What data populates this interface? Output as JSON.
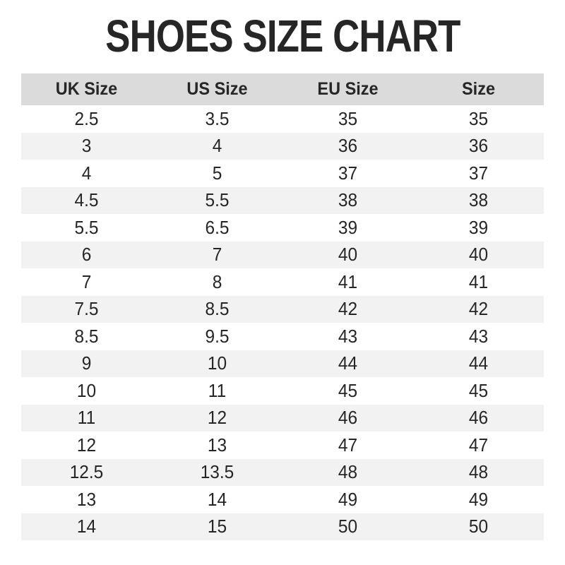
{
  "page": {
    "title": "SHOES SIZE CHART"
  },
  "table": {
    "headers": [
      "UK Size",
      "US Size",
      "EU Size",
      "Size"
    ],
    "rows": [
      [
        "2.5",
        "3.5",
        "35",
        "35"
      ],
      [
        "3",
        "4",
        "36",
        "36"
      ],
      [
        "4",
        "5",
        "37",
        "37"
      ],
      [
        "4.5",
        "5.5",
        "38",
        "38"
      ],
      [
        "5.5",
        "6.5",
        "39",
        "39"
      ],
      [
        "6",
        "7",
        "40",
        "40"
      ],
      [
        "7",
        "8",
        "41",
        "41"
      ],
      [
        "7.5",
        "8.5",
        "42",
        "42"
      ],
      [
        "8.5",
        "9.5",
        "43",
        "43"
      ],
      [
        "9",
        "10",
        "44",
        "44"
      ],
      [
        "10",
        "11",
        "45",
        "45"
      ],
      [
        "11",
        "12",
        "46",
        "46"
      ],
      [
        "12",
        "13",
        "47",
        "47"
      ],
      [
        "12.5",
        "13.5",
        "48",
        "48"
      ],
      [
        "13",
        "14",
        "49",
        "49"
      ],
      [
        "14",
        "15",
        "50",
        "50"
      ]
    ]
  },
  "colors": {
    "background": "#ffffff",
    "header_bg": "#dbdbdb",
    "row_alt_bg": "#f2f2f2",
    "text": "#262626"
  },
  "chart_data": {
    "type": "table",
    "title": "SHOES SIZE CHART",
    "columns": [
      "UK Size",
      "US Size",
      "EU Size",
      "Size"
    ],
    "rows": [
      [
        "2.5",
        "3.5",
        "35",
        "35"
      ],
      [
        "3",
        "4",
        "36",
        "36"
      ],
      [
        "4",
        "5",
        "37",
        "37"
      ],
      [
        "4.5",
        "5.5",
        "38",
        "38"
      ],
      [
        "5.5",
        "6.5",
        "39",
        "39"
      ],
      [
        "6",
        "7",
        "40",
        "40"
      ],
      [
        "7",
        "8",
        "41",
        "41"
      ],
      [
        "7.5",
        "8.5",
        "42",
        "42"
      ],
      [
        "8.5",
        "9.5",
        "43",
        "43"
      ],
      [
        "9",
        "10",
        "44",
        "44"
      ],
      [
        "10",
        "11",
        "45",
        "45"
      ],
      [
        "11",
        "12",
        "46",
        "46"
      ],
      [
        "12",
        "13",
        "47",
        "47"
      ],
      [
        "12.5",
        "13.5",
        "48",
        "48"
      ],
      [
        "13",
        "14",
        "49",
        "49"
      ],
      [
        "14",
        "15",
        "50",
        "50"
      ]
    ],
    "layout": {
      "header_background": "#dbdbdb",
      "alternating_row_background": "#f2f2f2",
      "alignment": "center"
    }
  }
}
